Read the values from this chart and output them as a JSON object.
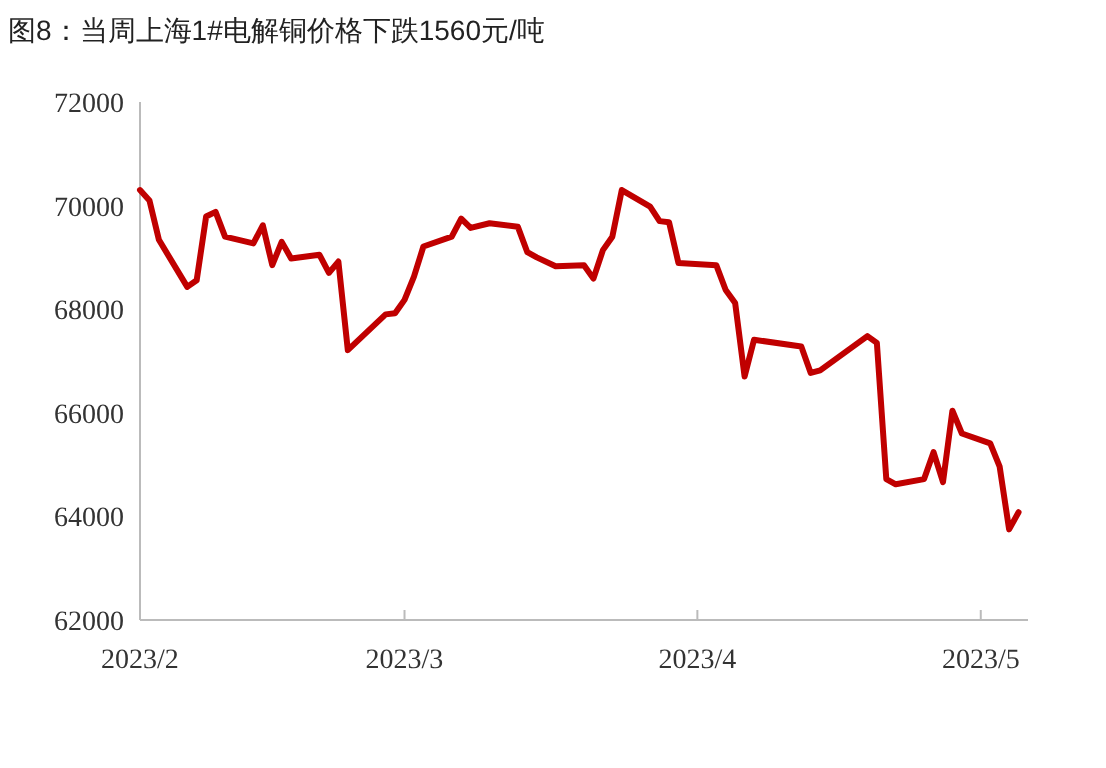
{
  "chart_data": {
    "type": "line",
    "title": "图8：当周上海1#电解铜价格下跌1560元/吨",
    "x": [
      "2023-02-01",
      "2023-02-02",
      "2023-02-03",
      "2023-02-06",
      "2023-02-07",
      "2023-02-08",
      "2023-02-09",
      "2023-02-10",
      "2023-02-13",
      "2023-02-14",
      "2023-02-15",
      "2023-02-16",
      "2023-02-17",
      "2023-02-20",
      "2023-02-21",
      "2023-02-22",
      "2023-02-23",
      "2023-02-27",
      "2023-02-28",
      "2023-03-01",
      "2023-03-02",
      "2023-03-03",
      "2023-03-06",
      "2023-03-07",
      "2023-03-08",
      "2023-03-10",
      "2023-03-13",
      "2023-03-14",
      "2023-03-15",
      "2023-03-17",
      "2023-03-20",
      "2023-03-21",
      "2023-03-22",
      "2023-03-23",
      "2023-03-24",
      "2023-03-27",
      "2023-03-28",
      "2023-03-29",
      "2023-03-30",
      "2023-04-03",
      "2023-04-04",
      "2023-04-05",
      "2023-04-06",
      "2023-04-07",
      "2023-04-12",
      "2023-04-13",
      "2023-04-14",
      "2023-04-19",
      "2023-04-20",
      "2023-04-21",
      "2023-04-22",
      "2023-04-25",
      "2023-04-26",
      "2023-04-27",
      "2023-04-28",
      "2023-04-29",
      "2023-05-02",
      "2023-05-03",
      "2023-05-04",
      "2023-05-05"
    ],
    "series": [
      {
        "color": "#c00000",
        "values": [
          70300,
          70100,
          69340,
          68430,
          68560,
          69790,
          69880,
          69400,
          69270,
          69620,
          68850,
          69300,
          68980,
          69050,
          68700,
          68920,
          67210,
          67900,
          67920,
          68180,
          68630,
          69210,
          69400,
          69750,
          69570,
          69660,
          69590,
          69100,
          69000,
          68830,
          68850,
          68590,
          69140,
          69400,
          70300,
          69980,
          69700,
          69680,
          68890,
          68850,
          68370,
          68120,
          66700,
          67410,
          67280,
          66770,
          66820,
          67480,
          67350,
          64720,
          64620,
          64720,
          65240,
          64660,
          66040,
          65600,
          65410,
          64960,
          63750,
          64080
        ]
      }
    ],
    "xlim": [
      "2023-02-01",
      "2023-05-06"
    ],
    "xticks": [
      {
        "value": "2023-02-01",
        "label": "2023/2"
      },
      {
        "value": "2023-03-01",
        "label": "2023/3"
      },
      {
        "value": "2023-04-01",
        "label": "2023/4"
      },
      {
        "value": "2023-05-01",
        "label": "2023/5"
      }
    ],
    "ylim": [
      62000,
      72000
    ],
    "yticks": [
      62000,
      64000,
      66000,
      68000,
      70000,
      72000
    ],
    "grid": false,
    "marker": "none",
    "line_style": "solid"
  }
}
